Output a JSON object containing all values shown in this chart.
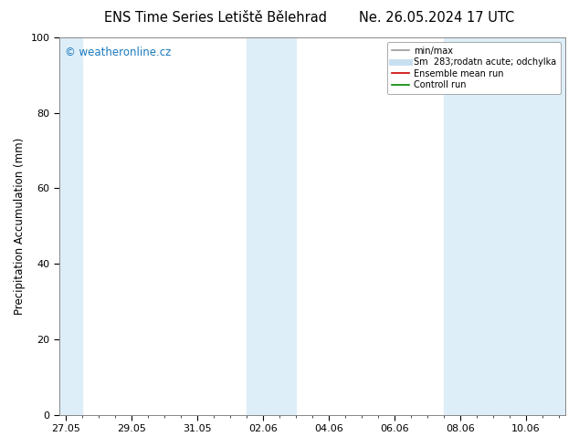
{
  "title_left": "ENS Time Series Letiště Bělehrad",
  "title_right": "Ne. 26.05.2024 17 UTC",
  "ylabel": "Precipitation Accumulation (mm)",
  "watermark": "© weatheronline.cz",
  "ylim": [
    0,
    100
  ],
  "yticks": [
    0,
    20,
    40,
    60,
    80,
    100
  ],
  "xtick_labels": [
    "27.05",
    "29.05",
    "31.05",
    "02.06",
    "04.06",
    "06.06",
    "08.06",
    "10.06"
  ],
  "xtick_positions": [
    0,
    2,
    4,
    6,
    8,
    10,
    12,
    14
  ],
  "x_start": -0.2,
  "x_end": 15.2,
  "shaded_bands": [
    {
      "xmin": -0.2,
      "xmax": 0.5,
      "color": "#ddeef8"
    },
    {
      "xmin": 5.5,
      "xmax": 7.0,
      "color": "#ddeef8"
    },
    {
      "xmin": 11.5,
      "xmax": 15.2,
      "color": "#ddeef8"
    }
  ],
  "legend_entries": [
    {
      "label": "min/max",
      "color": "#999999",
      "lw": 1.2,
      "style": "solid"
    },
    {
      "label": "Sm  283;rodatn acute; odchylka",
      "color": "#c8dff0",
      "lw": 5,
      "style": "solid"
    },
    {
      "label": "Ensemble mean run",
      "color": "#cc0000",
      "lw": 1.2,
      "style": "solid"
    },
    {
      "label": "Controll run",
      "color": "#008800",
      "lw": 1.2,
      "style": "solid"
    }
  ],
  "bg_color": "#ffffff",
  "plot_bg_color": "#ffffff",
  "title_fontsize": 10.5,
  "axis_fontsize": 8.5,
  "watermark_color": "#1a7abf",
  "tick_label_fontsize": 8,
  "legend_fontsize": 7,
  "minor_tick_interval": 0.5
}
